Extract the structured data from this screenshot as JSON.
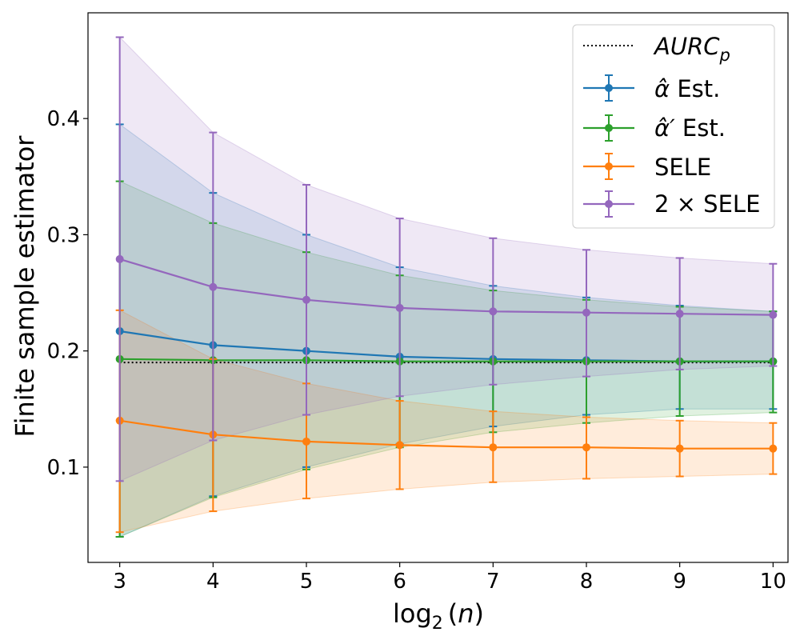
{
  "chart_data": {
    "type": "line",
    "xlabel": "log₂(n)",
    "ylabel": "Finite sample estimator",
    "x": [
      3,
      4,
      5,
      6,
      7,
      8,
      9,
      10
    ],
    "xlim": [
      2.66,
      10.16
    ],
    "ylim": [
      0.018,
      0.491
    ],
    "yticks": [
      0.1,
      0.2,
      0.3,
      0.4
    ],
    "yticklabels": [
      "0.1",
      "0.2",
      "0.3",
      "0.4"
    ],
    "xticklabels": [
      "3",
      "4",
      "5",
      "6",
      "7",
      "8",
      "9",
      "10"
    ],
    "grid": false,
    "legend_position": "top-right",
    "reference_line": {
      "name": "AURCₚ",
      "value": 0.19,
      "color": "#000000",
      "style": "dotted"
    },
    "series": [
      {
        "name": "α̂ Est.",
        "color": "#1f77b4",
        "values": [
          0.217,
          0.205,
          0.2,
          0.195,
          0.193,
          0.192,
          0.191,
          0.191
        ],
        "lower": [
          0.04,
          0.075,
          0.1,
          0.12,
          0.135,
          0.145,
          0.15,
          0.15
        ],
        "upper": [
          0.395,
          0.336,
          0.3,
          0.272,
          0.256,
          0.246,
          0.239,
          0.234
        ]
      },
      {
        "name": "α̂′ Est.",
        "color": "#2ca02c",
        "values": [
          0.193,
          0.192,
          0.192,
          0.191,
          0.191,
          0.191,
          0.191,
          0.191
        ],
        "lower": [
          0.04,
          0.074,
          0.098,
          0.117,
          0.13,
          0.138,
          0.144,
          0.147
        ],
        "upper": [
          0.346,
          0.31,
          0.285,
          0.265,
          0.252,
          0.244,
          0.238,
          0.234
        ]
      },
      {
        "name": "SELE",
        "color": "#ff7f0e",
        "values": [
          0.14,
          0.128,
          0.122,
          0.119,
          0.117,
          0.117,
          0.116,
          0.116
        ],
        "lower": [
          0.044,
          0.062,
          0.073,
          0.081,
          0.087,
          0.09,
          0.092,
          0.094
        ],
        "upper": [
          0.235,
          0.193,
          0.172,
          0.157,
          0.148,
          0.143,
          0.14,
          0.138
        ]
      },
      {
        "name": "2 × SELE",
        "color": "#9467bd",
        "values": [
          0.279,
          0.255,
          0.244,
          0.237,
          0.234,
          0.233,
          0.232,
          0.231
        ],
        "lower": [
          0.088,
          0.123,
          0.145,
          0.161,
          0.171,
          0.178,
          0.184,
          0.187
        ],
        "upper": [
          0.47,
          0.388,
          0.343,
          0.314,
          0.297,
          0.287,
          0.28,
          0.275
        ]
      }
    ]
  }
}
